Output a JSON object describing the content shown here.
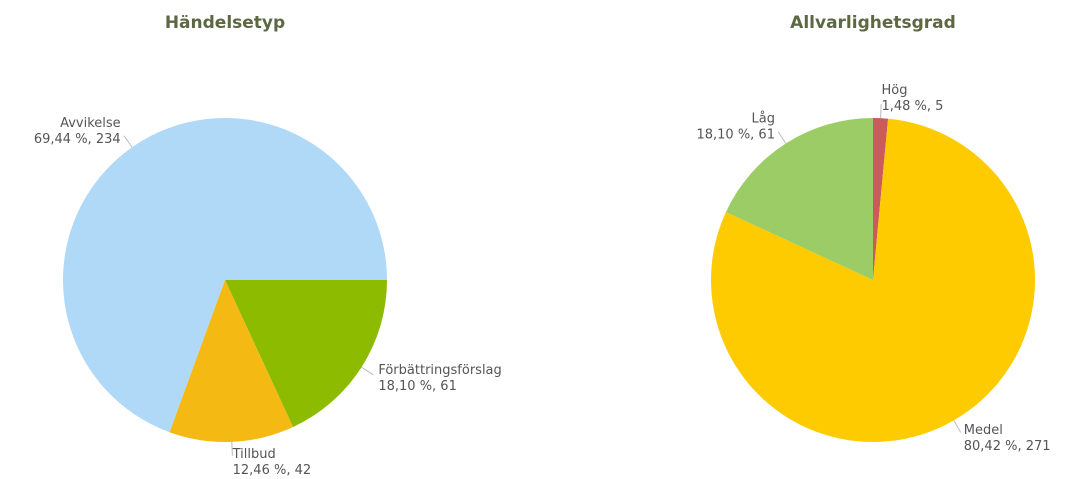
{
  "chart_data": [
    {
      "type": "pie",
      "title": "Händelsetyp",
      "categories": [
        "Förbättringsförslag",
        "Tillbud",
        "Avvikelse"
      ],
      "values": [
        61,
        42,
        234
      ],
      "value_labels": [
        "18,10 %, 61",
        "12,46 %, 42",
        "69,44 %, 234"
      ],
      "colors": [
        "#8cbb00",
        "#f5b914",
        "#b0d8f7"
      ]
    },
    {
      "type": "pie",
      "title": "Allvarlighetsgrad",
      "categories": [
        "Hög",
        "Medel",
        "Låg"
      ],
      "values": [
        5,
        271,
        61
      ],
      "value_labels": [
        "1,48 %, 5",
        "80,42 %, 271",
        "18,10 %, 61"
      ],
      "colors": [
        "#cc5a5a",
        "#fdcb00",
        "#9bcc66"
      ]
    }
  ]
}
